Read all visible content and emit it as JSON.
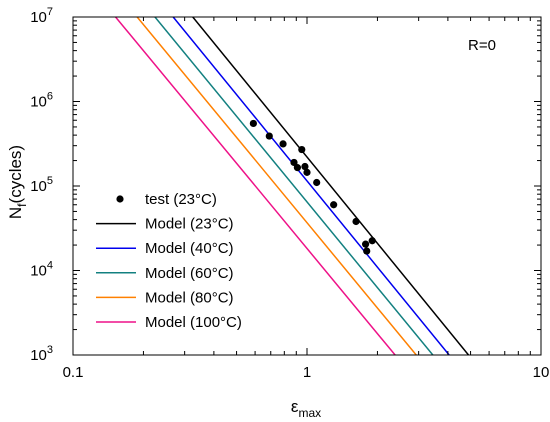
{
  "chart_data": {
    "type": "line",
    "x_scale": "log",
    "y_scale": "log",
    "xlim": [
      0.1,
      10
    ],
    "ylim": [
      1000,
      10000000
    ],
    "x_ticks": [
      {
        "value": 0.1,
        "label": "0.1"
      },
      {
        "value": 1,
        "label": "1"
      },
      {
        "value": 10,
        "label": "10"
      }
    ],
    "y_ticks": [
      {
        "value": 1000,
        "base": "10",
        "exp": "3"
      },
      {
        "value": 10000,
        "base": "10",
        "exp": "4"
      },
      {
        "value": 100000,
        "base": "10",
        "exp": "5"
      },
      {
        "value": 1000000,
        "base": "10",
        "exp": "6"
      },
      {
        "value": 10000000,
        "base": "10",
        "exp": "7"
      }
    ],
    "xlabel": {
      "main": "ε",
      "sub": "max"
    },
    "ylabel": {
      "main": "N",
      "sub": "f",
      "rest": "(cycles)"
    },
    "annotation": "R=0",
    "legend_position": "bottom-left",
    "scatter": {
      "name": "test (23°C)",
      "color": "#000000",
      "points": [
        {
          "x": 0.59,
          "y": 550000
        },
        {
          "x": 0.69,
          "y": 390000
        },
        {
          "x": 0.79,
          "y": 315000
        },
        {
          "x": 0.88,
          "y": 190000
        },
        {
          "x": 0.91,
          "y": 165000
        },
        {
          "x": 0.95,
          "y": 270000
        },
        {
          "x": 0.98,
          "y": 170000
        },
        {
          "x": 1.0,
          "y": 145000
        },
        {
          "x": 1.1,
          "y": 110000
        },
        {
          "x": 1.3,
          "y": 60000
        },
        {
          "x": 1.62,
          "y": 38000
        },
        {
          "x": 1.78,
          "y": 20500
        },
        {
          "x": 1.8,
          "y": 17000
        },
        {
          "x": 1.9,
          "y": 22500
        }
      ]
    },
    "series": [
      {
        "name": "Model (23°C)",
        "color": "#000000",
        "points": [
          {
            "x": 0.325,
            "y": 10000000
          },
          {
            "x": 4.9,
            "y": 1000
          }
        ]
      },
      {
        "name": "Model (40°C)",
        "color": "#0000ee",
        "points": [
          {
            "x": 0.268,
            "y": 10000000
          },
          {
            "x": 4.05,
            "y": 1000
          }
        ]
      },
      {
        "name": "Model (60°C)",
        "color": "#138080",
        "points": [
          {
            "x": 0.224,
            "y": 10000000
          },
          {
            "x": 3.45,
            "y": 1000
          }
        ]
      },
      {
        "name": "Model (80°C)",
        "color": "#ff8000",
        "points": [
          {
            "x": 0.188,
            "y": 10000000
          },
          {
            "x": 2.93,
            "y": 1000
          }
        ]
      },
      {
        "name": "Model (100°C)",
        "color": "#ee1188",
        "points": [
          {
            "x": 0.152,
            "y": 10000000
          },
          {
            "x": 2.38,
            "y": 1000
          }
        ]
      }
    ]
  }
}
